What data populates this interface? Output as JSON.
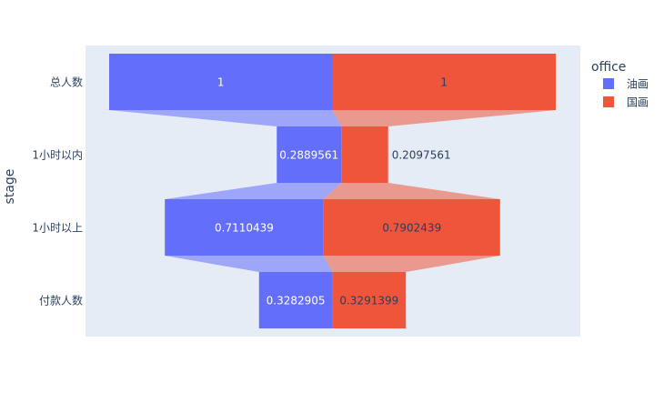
{
  "chart_data": {
    "type": "funnel",
    "categories": [
      "总人数",
      "1小时以内",
      "1小时以上",
      "付款人数"
    ],
    "series": [
      {
        "name": "油画",
        "values": [
          1,
          0.2889561,
          0.7110439,
          0.3282905
        ],
        "labels": [
          "1",
          "0.2889561",
          "0.7110439",
          "0.3282905"
        ],
        "color": "#636efa"
      },
      {
        "name": "国画",
        "values": [
          1,
          0.2097561,
          0.7902439,
          0.3291399
        ],
        "labels": [
          "1",
          "0.2097561",
          "0.7902439",
          "0.3291399"
        ],
        "color": "#ef553b"
      }
    ],
    "ylabel": "stage",
    "legend_title": "office",
    "legend_position": "right",
    "plot_background": "#e5ecf6"
  }
}
